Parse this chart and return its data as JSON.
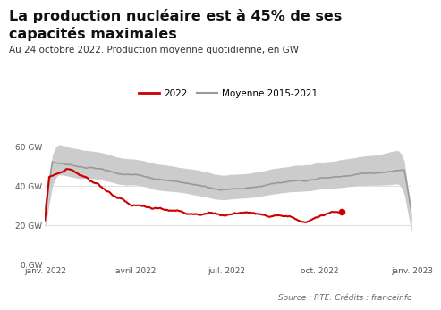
{
  "title_line1": "La production nucléaire est à 45% de ses",
  "title_line2": "capacités maximales",
  "subtitle": "Au 24 octobre 2022. Production moyenne quotidienne, en GW",
  "source": "Source : RTE. Crédits : franceinfo",
  "background_color": "#ffffff",
  "title_fontsize": 11.5,
  "subtitle_fontsize": 7.5,
  "source_fontsize": 6.5,
  "legend_fontsize": 7.5,
  "ylabel_ticks": [
    "0 GW",
    "20 GW",
    "40 GW",
    "60 GW"
  ],
  "ytick_vals": [
    0,
    20,
    40,
    60
  ],
  "xlabels": [
    "janv. 2022",
    "avril 2022",
    "juil. 2022",
    "oct. 2022",
    "janv. 2023"
  ],
  "xtick_positions": [
    0,
    90,
    181,
    273,
    365
  ],
  "line2022_color": "#cc0000",
  "mean_line_color": "#999999",
  "band_color": "#cccccc",
  "grid_color": "#e0e0e0",
  "xlim": [
    0,
    365
  ],
  "ylim": [
    0,
    68
  ]
}
